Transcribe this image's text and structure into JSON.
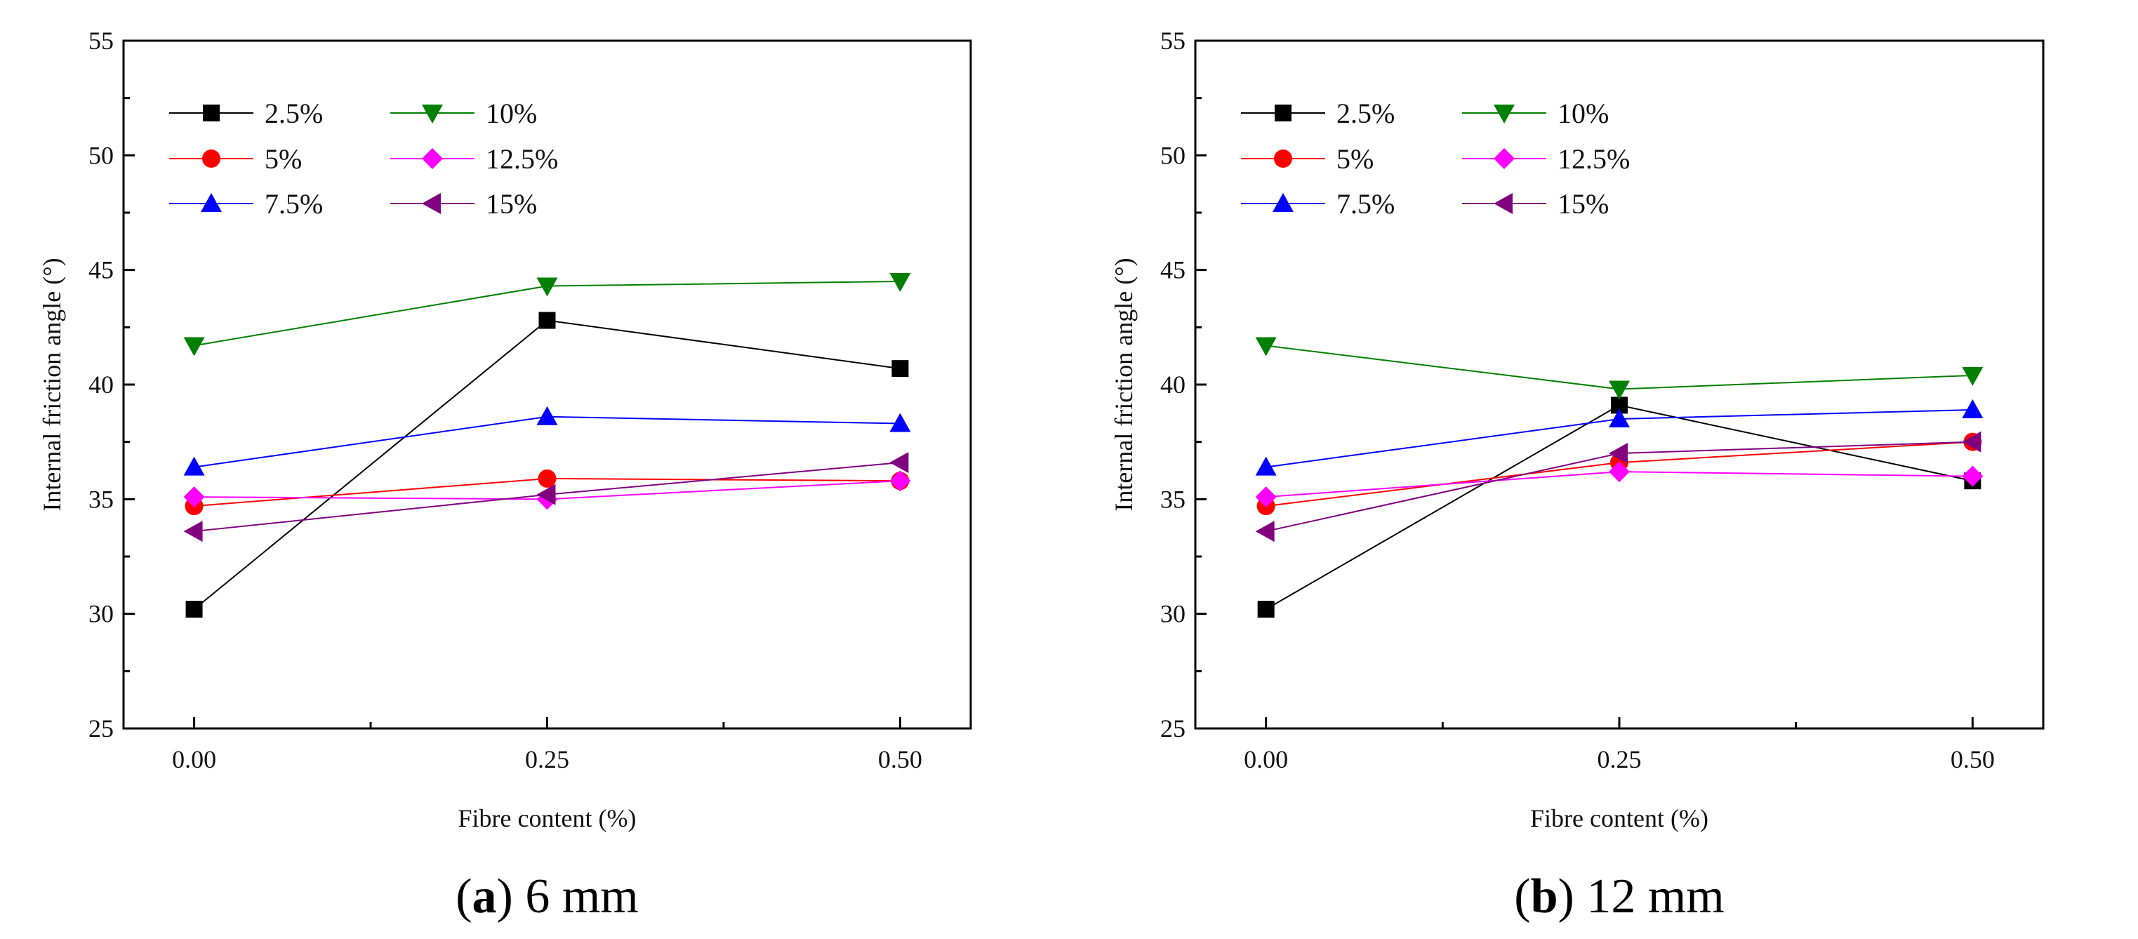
{
  "chart_data": [
    {
      "type": "line",
      "caption_letter": "a",
      "caption_text": "6 mm",
      "xlabel": "Fibre content (%)",
      "ylabel": "Internal friction angle (°)",
      "x": [
        0.0,
        0.25,
        0.5
      ],
      "x_tick_labels": [
        "0.00",
        "0.25",
        "0.50"
      ],
      "xlim": [
        -0.05,
        0.55
      ],
      "ylim": [
        25,
        55
      ],
      "y_ticks": [
        25,
        30,
        35,
        40,
        45,
        50,
        55
      ],
      "legend_position": "top-left",
      "series": [
        {
          "name": "2.5%",
          "values": [
            30.2,
            42.8,
            40.7
          ],
          "color": "#000000",
          "marker": "square"
        },
        {
          "name": "5%",
          "values": [
            34.7,
            35.9,
            35.8
          ],
          "color": "#ff0000",
          "marker": "circle"
        },
        {
          "name": "7.5%",
          "values": [
            36.4,
            38.6,
            38.3
          ],
          "color": "#0000ff",
          "marker": "triangle-up"
        },
        {
          "name": "10%",
          "values": [
            41.7,
            44.3,
            44.5
          ],
          "color": "#008000",
          "marker": "triangle-down"
        },
        {
          "name": "12.5%",
          "values": [
            35.1,
            35.0,
            35.8
          ],
          "color": "#ff00ff",
          "marker": "diamond"
        },
        {
          "name": "15%",
          "values": [
            33.6,
            35.2,
            36.6
          ],
          "color": "#800080",
          "marker": "triangle-left"
        }
      ]
    },
    {
      "type": "line",
      "caption_letter": "b",
      "caption_text": "12 mm",
      "xlabel": "Fibre content (%)",
      "ylabel": "Internal friction angle (°)",
      "x": [
        0.0,
        0.25,
        0.5
      ],
      "x_tick_labels": [
        "0.00",
        "0.25",
        "0.50"
      ],
      "xlim": [
        -0.05,
        0.55
      ],
      "ylim": [
        25,
        55
      ],
      "y_ticks": [
        25,
        30,
        35,
        40,
        45,
        50,
        55
      ],
      "legend_position": "top-left",
      "series": [
        {
          "name": "2.5%",
          "values": [
            30.2,
            39.1,
            35.8
          ],
          "color": "#000000",
          "marker": "square"
        },
        {
          "name": "5%",
          "values": [
            34.7,
            36.6,
            37.5
          ],
          "color": "#ff0000",
          "marker": "circle"
        },
        {
          "name": "7.5%",
          "values": [
            36.4,
            38.5,
            38.9
          ],
          "color": "#0000ff",
          "marker": "triangle-up"
        },
        {
          "name": "10%",
          "values": [
            41.7,
            39.8,
            40.4
          ],
          "color": "#008000",
          "marker": "triangle-down"
        },
        {
          "name": "12.5%",
          "values": [
            35.1,
            36.2,
            36.0
          ],
          "color": "#ff00ff",
          "marker": "diamond"
        },
        {
          "name": "15%",
          "values": [
            33.6,
            37.0,
            37.5
          ],
          "color": "#800080",
          "marker": "triangle-left"
        }
      ]
    }
  ]
}
